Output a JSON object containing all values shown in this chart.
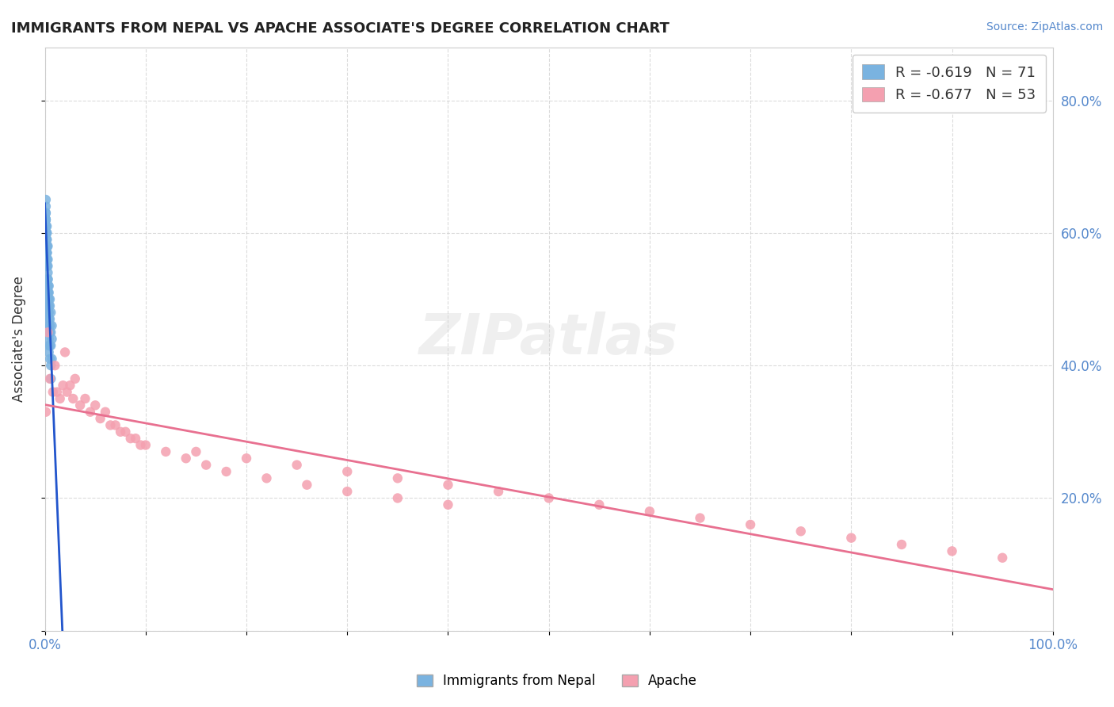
{
  "title": "IMMIGRANTS FROM NEPAL VS APACHE ASSOCIATE'S DEGREE CORRELATION CHART",
  "source_text": "Source: ZipAtlas.com",
  "xlabel": "",
  "ylabel": "Associate's Degree",
  "legend_blue_label": "Immigrants from Nepal",
  "legend_pink_label": "Apache",
  "r_blue": -0.619,
  "n_blue": 71,
  "r_pink": -0.677,
  "n_pink": 53,
  "blue_color": "#7ab3e0",
  "pink_color": "#f4a0b0",
  "blue_line_color": "#2255cc",
  "pink_line_color": "#e87090",
  "watermark": "ZIPatlas",
  "blue_scatter_x": [
    0.002,
    0.001,
    0.003,
    0.001,
    0.002,
    0.004,
    0.003,
    0.005,
    0.002,
    0.003,
    0.001,
    0.004,
    0.006,
    0.002,
    0.003,
    0.001,
    0.005,
    0.002,
    0.004,
    0.003,
    0.007,
    0.002,
    0.001,
    0.003,
    0.005,
    0.002,
    0.004,
    0.001,
    0.003,
    0.006,
    0.002,
    0.004,
    0.001,
    0.003,
    0.005,
    0.007,
    0.002,
    0.003,
    0.001,
    0.004,
    0.006,
    0.002,
    0.003,
    0.001,
    0.004,
    0.005,
    0.002,
    0.003,
    0.007,
    0.002,
    0.004,
    0.001,
    0.003,
    0.002,
    0.005,
    0.003,
    0.001,
    0.004,
    0.002,
    0.006,
    0.003,
    0.001,
    0.004,
    0.002,
    0.005,
    0.001,
    0.003,
    0.006,
    0.002,
    0.004,
    0.001
  ],
  "blue_scatter_y": [
    0.55,
    0.62,
    0.58,
    0.6,
    0.57,
    0.52,
    0.56,
    0.5,
    0.59,
    0.54,
    0.63,
    0.51,
    0.48,
    0.61,
    0.53,
    0.64,
    0.49,
    0.6,
    0.5,
    0.55,
    0.46,
    0.58,
    0.65,
    0.52,
    0.47,
    0.6,
    0.49,
    0.63,
    0.51,
    0.45,
    0.59,
    0.48,
    0.62,
    0.53,
    0.46,
    0.44,
    0.57,
    0.52,
    0.61,
    0.47,
    0.43,
    0.58,
    0.51,
    0.6,
    0.46,
    0.45,
    0.56,
    0.5,
    0.41,
    0.57,
    0.45,
    0.61,
    0.5,
    0.58,
    0.43,
    0.51,
    0.62,
    0.44,
    0.57,
    0.4,
    0.49,
    0.61,
    0.43,
    0.56,
    0.41,
    0.62,
    0.48,
    0.38,
    0.55,
    0.42,
    0.6
  ],
  "pink_scatter_x": [
    0.001,
    0.003,
    0.01,
    0.005,
    0.02,
    0.015,
    0.03,
    0.008,
    0.025,
    0.04,
    0.012,
    0.05,
    0.018,
    0.06,
    0.022,
    0.07,
    0.028,
    0.08,
    0.035,
    0.09,
    0.045,
    0.1,
    0.055,
    0.15,
    0.065,
    0.2,
    0.075,
    0.25,
    0.085,
    0.3,
    0.095,
    0.35,
    0.12,
    0.4,
    0.14,
    0.45,
    0.16,
    0.5,
    0.18,
    0.55,
    0.22,
    0.6,
    0.26,
    0.65,
    0.3,
    0.7,
    0.35,
    0.75,
    0.4,
    0.8,
    0.85,
    0.9,
    0.95
  ],
  "pink_scatter_y": [
    0.33,
    0.45,
    0.4,
    0.38,
    0.42,
    0.35,
    0.38,
    0.36,
    0.37,
    0.35,
    0.36,
    0.34,
    0.37,
    0.33,
    0.36,
    0.31,
    0.35,
    0.3,
    0.34,
    0.29,
    0.33,
    0.28,
    0.32,
    0.27,
    0.31,
    0.26,
    0.3,
    0.25,
    0.29,
    0.24,
    0.28,
    0.23,
    0.27,
    0.22,
    0.26,
    0.21,
    0.25,
    0.2,
    0.24,
    0.19,
    0.23,
    0.18,
    0.22,
    0.17,
    0.21,
    0.16,
    0.2,
    0.15,
    0.19,
    0.14,
    0.13,
    0.12,
    0.11
  ],
  "xlim": [
    0.0,
    1.0
  ],
  "ylim": [
    0.0,
    0.88
  ],
  "yticks": [
    0.0,
    0.2,
    0.4,
    0.6,
    0.8
  ],
  "xticks": [
    0.0,
    0.1,
    0.2,
    0.3,
    0.4,
    0.5,
    0.6,
    0.7,
    0.8,
    0.9,
    1.0
  ],
  "background_color": "#ffffff",
  "grid_color": "#cccccc"
}
